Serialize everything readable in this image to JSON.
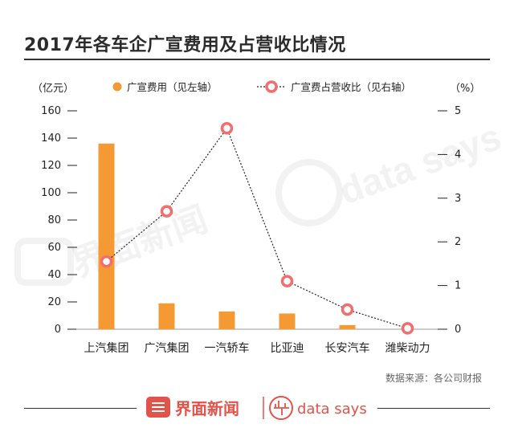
{
  "title": "2017年各车企广宣费用及占营收比情况",
  "legend": {
    "bar_label": "广宣费用（见左轴）",
    "line_label": "广宣费占营收比（见右轴）"
  },
  "source": "数据来源：各公司财报",
  "brand": {
    "name_cn": "界面新闻",
    "name_en": "data says",
    "color": "#e2534a"
  },
  "colors": {
    "bar": "#f59a32",
    "line": "#222222",
    "marker": "#f26e6e",
    "axis_text": "#222222"
  },
  "chart_data": {
    "type": "bar",
    "categories": [
      "上汽集团",
      "广汽集团",
      "一汽轿车",
      "比亚迪",
      "长安汽车",
      "潍柴动力"
    ],
    "series": [
      {
        "name": "广宣费用（见左轴）",
        "type": "bar",
        "axis": "left",
        "values": [
          136,
          19,
          13,
          11.5,
          3,
          0
        ]
      },
      {
        "name": "广宣费占营收比（见右轴）",
        "type": "line",
        "axis": "right",
        "values": [
          1.55,
          2.7,
          4.6,
          1.1,
          0.45,
          0.02
        ]
      }
    ],
    "ylabel_left": "（亿元）",
    "ylabel_right": "（%）",
    "ylim_left": [
      0,
      160
    ],
    "ylim_right": [
      0,
      5
    ],
    "yticks_left": [
      0,
      20,
      40,
      60,
      80,
      100,
      120,
      140,
      160
    ],
    "yticks_right": [
      0,
      1,
      2,
      3,
      4,
      5
    ],
    "grid": false,
    "legend_position": "top"
  }
}
